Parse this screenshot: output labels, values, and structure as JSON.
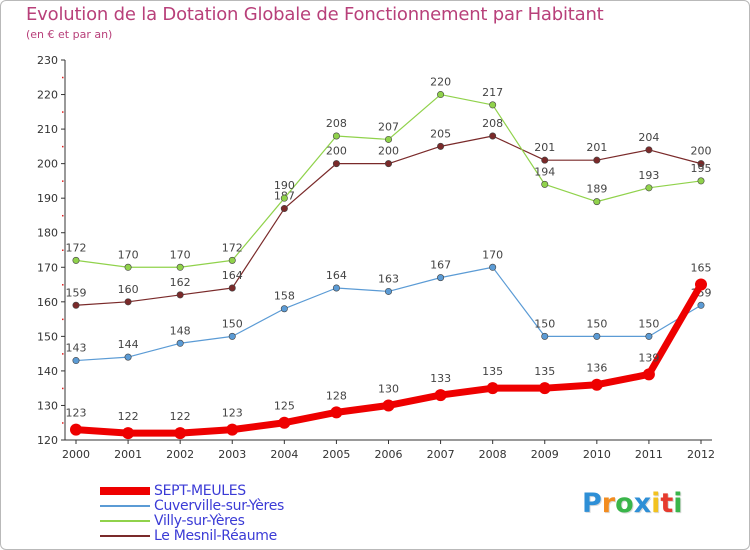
{
  "title": "Evolution de la Dotation Globale de Fonctionnement par Habitant",
  "subtitle": "(en € et par an)",
  "logo": {
    "text": "Proxiti",
    "colors": [
      "#2e8fd6",
      "#f28c1f",
      "#3ab54a",
      "#2e8fd6",
      "#f2c21f",
      "#e63b2e",
      "#3ab54a"
    ]
  },
  "chart_data": {
    "type": "line",
    "title": "Evolution de la Dotation Globale de Fonctionnement par Habitant",
    "subtitle": "(en € et par an)",
    "x": [
      2000,
      2001,
      2002,
      2003,
      2004,
      2005,
      2006,
      2007,
      2008,
      2009,
      2010,
      2011,
      2012
    ],
    "ylim": [
      120,
      230
    ],
    "yticks": [
      120,
      130,
      140,
      150,
      160,
      170,
      180,
      190,
      200,
      210,
      220,
      230
    ],
    "grid": false,
    "legend_position": "bottom-left",
    "series": [
      {
        "name": "SEPT-MEULES",
        "color": "#ee0000",
        "values": [
          123,
          122,
          122,
          123,
          125,
          128,
          130,
          133,
          135,
          135,
          136,
          139,
          165
        ]
      },
      {
        "name": "Cuverville-sur-Yères",
        "color": "#5b9bd5",
        "values": [
          143,
          144,
          148,
          150,
          158,
          164,
          163,
          167,
          170,
          150,
          150,
          150,
          159
        ]
      },
      {
        "name": "Villy-sur-Yères",
        "color": "#90d24b",
        "values": [
          172,
          170,
          170,
          172,
          190,
          208,
          207,
          220,
          217,
          194,
          189,
          193,
          195
        ]
      },
      {
        "name": "Le Mesnil-Réaume",
        "color": "#7a2a2a",
        "values": [
          159,
          160,
          162,
          164,
          187,
          200,
          200,
          205,
          208,
          201,
          201,
          204,
          200
        ]
      }
    ]
  }
}
